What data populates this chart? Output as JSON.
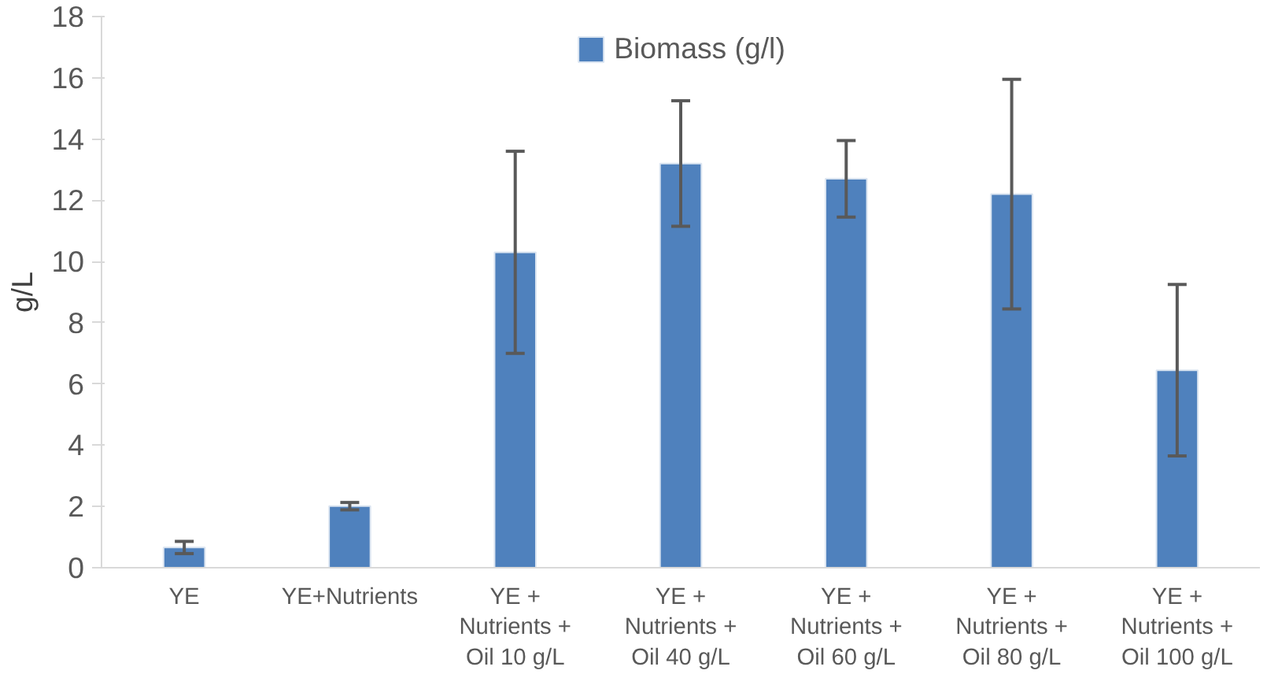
{
  "chart_data": {
    "type": "bar",
    "ylabel": "g/L",
    "categories": [
      "YE",
      "YE+Nutrients",
      "YE + Nutrients + Oil 10 g/L",
      "YE + Nutrients + Oil 40 g/L",
      "YE + Nutrients + Oil 60 g/L",
      "YE + Nutrients + Oil 80 g/L",
      "YE + Nutrients + Oil 100 g/L"
    ],
    "series": [
      {
        "name": "Biomass (g/l)",
        "color": "#4f81bd",
        "values": [
          0.66,
          2.01,
          10.3,
          13.2,
          12.7,
          12.2,
          6.45
        ],
        "errors": [
          0.2,
          0.12,
          3.3,
          2.05,
          1.25,
          3.75,
          2.8
        ]
      }
    ],
    "ylim": [
      0,
      18
    ],
    "yticks": [
      0,
      2,
      4,
      6,
      8,
      10,
      12,
      14,
      16,
      18
    ],
    "grid": false,
    "legend": "top"
  }
}
